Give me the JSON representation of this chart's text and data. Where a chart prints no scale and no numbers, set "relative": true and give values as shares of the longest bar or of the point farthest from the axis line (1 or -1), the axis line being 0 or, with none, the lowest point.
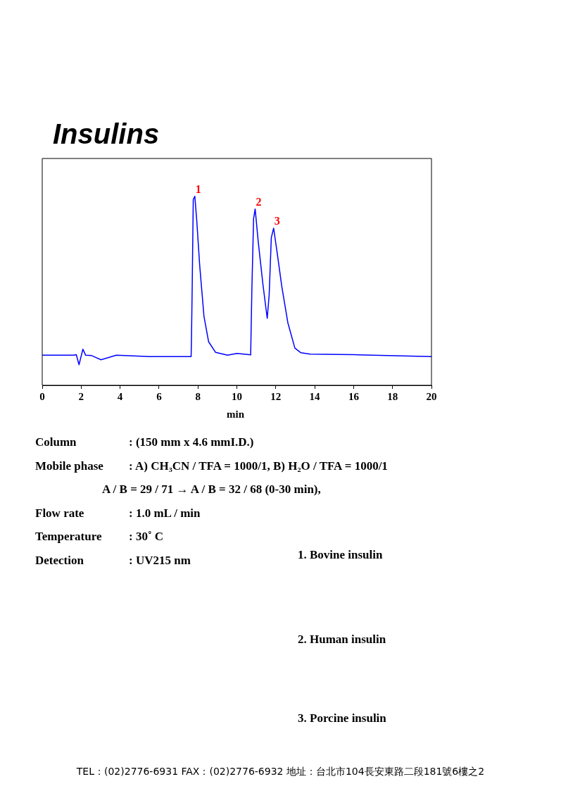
{
  "chart_data": {
    "type": "line",
    "title": "Insulins",
    "xlabel": "min",
    "relative": true,
    "color": "#0000ff",
    "marker": "none",
    "line_style": "solid",
    "legend": false,
    "xlim": [
      0,
      20
    ],
    "xticks": [
      0,
      2,
      4,
      6,
      8,
      10,
      12,
      14,
      16,
      18,
      20
    ],
    "x": [
      0,
      1.63,
      1.75,
      1.89,
      2.09,
      2.23,
      2.54,
      3.02,
      3.81,
      5.51,
      7.65,
      7.67,
      7.71,
      7.76,
      7.84,
      7.94,
      8.09,
      8.31,
      8.55,
      8.91,
      9.52,
      10.01,
      10.71,
      10.77,
      10.86,
      10.94,
      11.1,
      11.34,
      11.56,
      11.66,
      11.77,
      11.89,
      12.07,
      12.31,
      12.62,
      12.98,
      13.29,
      13.77,
      16,
      20
    ],
    "values": [
      0.159,
      0.159,
      0.162,
      0.109,
      0.191,
      0.159,
      0.157,
      0.135,
      0.159,
      0.152,
      0.152,
      0.258,
      0.556,
      0.983,
      1.0,
      0.871,
      0.635,
      0.365,
      0.23,
      0.174,
      0.159,
      0.169,
      0.161,
      0.5,
      0.882,
      0.933,
      0.758,
      0.534,
      0.354,
      0.478,
      0.781,
      0.831,
      0.702,
      0.522,
      0.331,
      0.197,
      0.172,
      0.165,
      0.162,
      0.152
    ],
    "annotations": [
      {
        "text": "1",
        "x": 7.84,
        "y": 1.0
      },
      {
        "text": "2",
        "x": 10.94,
        "y": 0.933
      },
      {
        "text": "3",
        "x": 11.89,
        "y": 0.831
      },
      "Column : (150 mm x 4.6 mmI.D.)",
      "Mobile phase : A) CH₃CN / TFA = 1000/1, B) H₂O / TFA = 1000/1",
      "A / B = 29 / 71 → A / B = 32 / 68 (0-30 min),",
      "Flow rate : 1.0 mL / min",
      "Temperature : 30˚ C",
      "Detection : UV215 nm",
      "1. Bovine insulin",
      "2. Human insulin",
      "3. Porcine insulin",
      "TEL：(02)2776-6931  FAX：(02)2776-6932   地址：台北市104長安東路二段181號6樓之2"
    ]
  }
}
